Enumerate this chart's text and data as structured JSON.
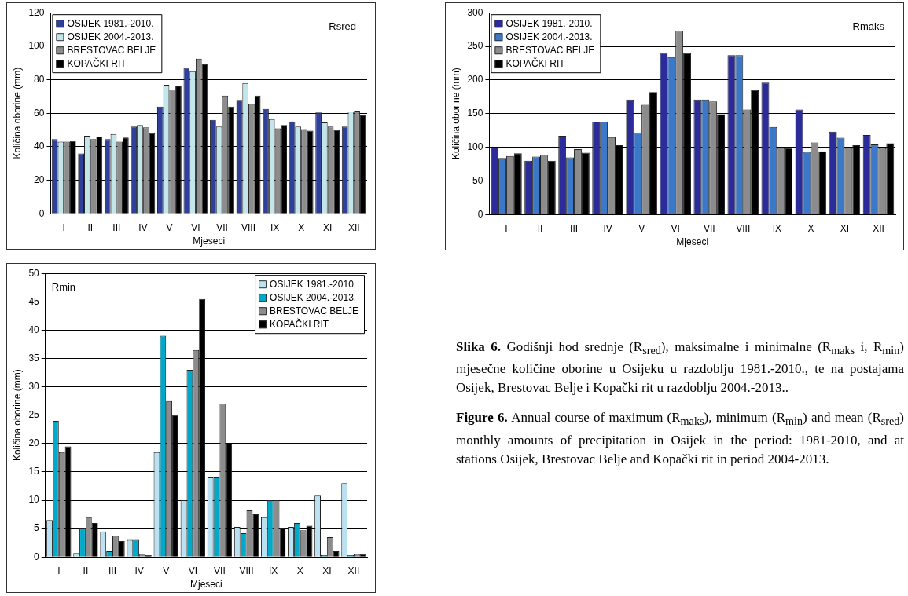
{
  "chart_data": [
    {
      "type": "bar",
      "categories": [
        "I",
        "II",
        "III",
        "IV",
        "V",
        "VI",
        "VII",
        "VIII",
        "IX",
        "X",
        "XI",
        "XII"
      ],
      "xlabel": "Mjeseci",
      "ylabel": "Količina oborine (mm)",
      "ylim": [
        0,
        120
      ],
      "yticks": [
        0,
        20,
        40,
        60,
        80,
        100,
        120
      ],
      "grid": "y",
      "legend": "top left",
      "annotations": [
        "Rsred"
      ],
      "series": [
        {
          "name": "OSIJEK 1981.-2010.",
          "color": "#2f3f9c",
          "values": [
            44.5,
            36,
            44.5,
            52,
            64,
            87,
            56,
            68,
            62.5,
            55,
            60.5,
            52
          ]
        },
        {
          "name": "OSIJEK 2004.-2013.",
          "color": "#c2e6ea",
          "values": [
            43,
            46.5,
            47.5,
            53,
            77,
            85,
            52,
            78,
            56.5,
            52,
            54.5,
            61
          ]
        },
        {
          "name": "BRESTOVAC BELJE",
          "color": "#8c8c8c",
          "values": [
            43,
            44.5,
            43,
            51.5,
            74,
            92.5,
            70.5,
            65.5,
            51,
            50.5,
            52,
            61.5
          ]
        },
        {
          "name": "KOPAČKI RIT",
          "color": "#000000",
          "values": [
            43.5,
            46,
            45.5,
            48,
            76,
            89.5,
            64,
            70.5,
            53,
            49.5,
            50,
            59
          ]
        }
      ]
    },
    {
      "type": "bar",
      "categories": [
        "I",
        "II",
        "III",
        "IV",
        "V",
        "VI",
        "VII",
        "VIII",
        "IX",
        "X",
        "XI",
        "XII"
      ],
      "xlabel": "Mjeseci",
      "ylabel": "Količina oborine (mm)",
      "ylim": [
        0,
        300
      ],
      "yticks": [
        0,
        50,
        100,
        150,
        200,
        250,
        300
      ],
      "grid": "y",
      "legend": "top left",
      "annotations": [
        "Rmaks"
      ],
      "series": [
        {
          "name": "OSIJEK 1981.-2010.",
          "color": "#2b2b9a",
          "values": [
            100,
            80,
            117,
            138,
            171,
            240,
            171,
            237,
            196,
            156,
            123,
            118
          ]
        },
        {
          "name": "OSIJEK 2004.-2013.",
          "color": "#3b78c8",
          "values": [
            84,
            86,
            85,
            138,
            121,
            234,
            171,
            237,
            130,
            93,
            114,
            104
          ]
        },
        {
          "name": "BRESTOVAC BELJE",
          "color": "#8c8c8c",
          "values": [
            87,
            89,
            97,
            115,
            163,
            273,
            168,
            156,
            99,
            107,
            99,
            99
          ]
        },
        {
          "name": "KOPAČKI RIT",
          "color": "#000000",
          "values": [
            91,
            80,
            92,
            103,
            182,
            240,
            149,
            185,
            99,
            94,
            103,
            106
          ]
        }
      ]
    },
    {
      "type": "bar",
      "categories": [
        "I",
        "II",
        "III",
        "IV",
        "V",
        "VI",
        "VII",
        "VIII",
        "IX",
        "X",
        "XI",
        "XII"
      ],
      "xlabel": "Mjeseci",
      "ylabel": "Količina oborine (mm)",
      "ylim": [
        0,
        50
      ],
      "yticks": [
        0,
        5,
        10,
        15,
        20,
        25,
        30,
        35,
        40,
        45,
        50
      ],
      "grid": "y",
      "legend": "top right",
      "annotations": [
        "Rmin"
      ],
      "series": [
        {
          "name": "OSIJEK 1981.-2010.",
          "color": "#b9e1f1",
          "values": [
            6.5,
            0.7,
            4.5,
            3,
            18.5,
            10,
            14,
            5.3,
            7,
            5.3,
            10.8,
            13
          ]
        },
        {
          "name": "OSIJEK 2004.-2013.",
          "color": "#00a9c9",
          "values": [
            24,
            5,
            1,
            3,
            39,
            33,
            14,
            4.2,
            10,
            6,
            0.3,
            0.3
          ]
        },
        {
          "name": "BRESTOVAC BELJE",
          "color": "#8c8c8c",
          "values": [
            18.5,
            7,
            3.7,
            0.5,
            27.5,
            36.5,
            27,
            8.2,
            10,
            4.7,
            3.5,
            0.5
          ]
        },
        {
          "name": "KOPAČKI RIT",
          "color": "#000000",
          "values": [
            19.5,
            6,
            2.8,
            0.3,
            25,
            45.5,
            20,
            7.5,
            5,
            5.5,
            1,
            0.5
          ]
        }
      ]
    },
    {
      "type": "other",
      "annotations": [
        "Slika 6.",
        "Godišnji hod srednje (R$_{sred}$), maksimalne i minimalne (R$_{maks}$ i, R$_{min}$) mjesečne količine oborine u Osijeku u razdoblju 1981.-2010., te na postajama Osijek, Brestovac Belje i Kopački rit u razdoblju 2004.-2013..",
        "Figure 6.",
        "Annual course of maximum (R$_{maks}$), minimum (R$_{min}$) and mean (R$_{sred}$) monthly amounts of precipitation in Osijek in the period: 1981-2010, and at stations Osijek, Brestovac Belje and Kopački rit in period 2004-2013."
      ]
    }
  ]
}
